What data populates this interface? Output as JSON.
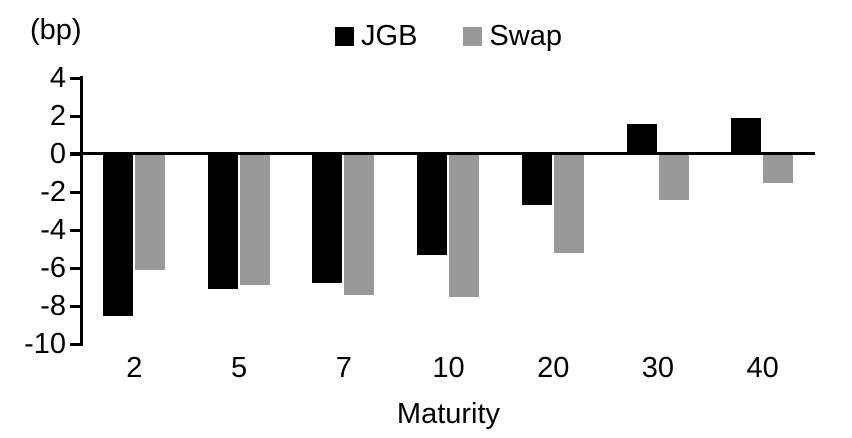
{
  "chart_data": {
    "type": "bar",
    "title": "",
    "unit_label": "(bp)",
    "xlabel": "Maturity",
    "categories": [
      "2",
      "5",
      "7",
      "10",
      "20",
      "30",
      "40"
    ],
    "series": [
      {
        "name": "JGB",
        "color": "#000000",
        "values": [
          -8.5,
          -7.1,
          -6.8,
          -5.3,
          -2.7,
          1.6,
          1.9
        ]
      },
      {
        "name": "Swap",
        "color": "#999999",
        "values": [
          -6.1,
          -6.9,
          -7.4,
          -7.5,
          -5.2,
          -2.4,
          -1.5
        ]
      }
    ],
    "ylim": [
      -10,
      4
    ],
    "yticks": [
      4,
      2,
      0,
      -2,
      -4,
      -6,
      -8,
      -10
    ],
    "legend_position": "top-center",
    "grid": false,
    "axis_color": "#000000",
    "background_color": "#ffffff"
  }
}
